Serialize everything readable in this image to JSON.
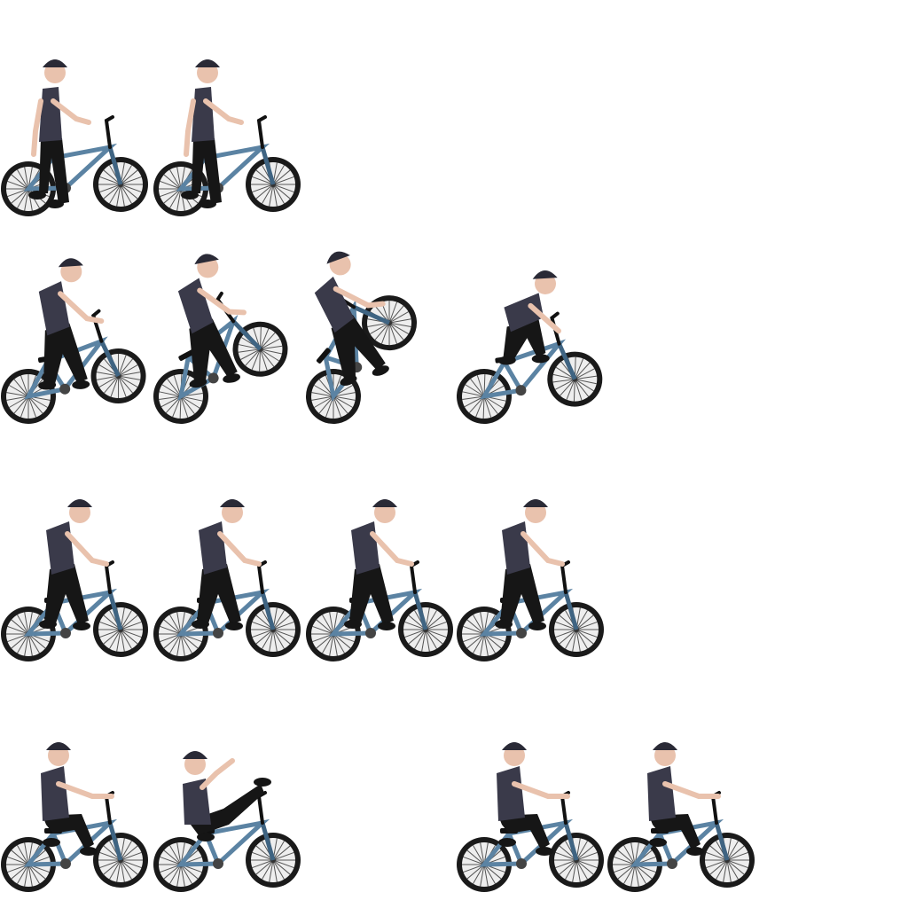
{
  "sprite_sheet": {
    "subject": "bmx-rider",
    "background_color": "#ffffff",
    "colors": {
      "frame": "#5b83a3",
      "frame_dark": "#3f6482",
      "tire": "#1a1a1a",
      "spoke": "#555555",
      "rim": "#eeeeee",
      "shirt": "#3a3a4a",
      "pants": "#161616",
      "cap": "#2a2a36",
      "skin": "#e9c2ad",
      "shoe": "#151515"
    },
    "rows": [
      {
        "name": "idle-standing",
        "frames": [
          {
            "pose": "stand",
            "wheelie": 0
          },
          {
            "pose": "stand",
            "wheelie": 0
          }
        ]
      },
      {
        "name": "wheelie-trick",
        "frames": [
          {
            "pose": "ride",
            "wheelie": 10
          },
          {
            "pose": "ride",
            "wheelie": 28
          },
          {
            "pose": "ride",
            "wheelie": 50
          },
          {
            "pose": "crouch",
            "wheelie": 8
          }
        ]
      },
      {
        "name": "pedaling",
        "frames": [
          {
            "pose": "ride",
            "wheelie": 0
          },
          {
            "pose": "ride",
            "wheelie": 0
          },
          {
            "pose": "ride",
            "wheelie": 0
          },
          {
            "pose": "ride",
            "wheelie": 0
          }
        ]
      },
      {
        "name": "seated-and-no-hander",
        "frames": [
          {
            "pose": "seated",
            "wheelie": 0
          },
          {
            "pose": "nohands",
            "wheelie": 0
          },
          {
            "pose": "empty",
            "wheelie": 0
          },
          {
            "pose": "seated",
            "wheelie": 0
          },
          {
            "pose": "seated",
            "wheelie": 0
          }
        ]
      }
    ]
  }
}
